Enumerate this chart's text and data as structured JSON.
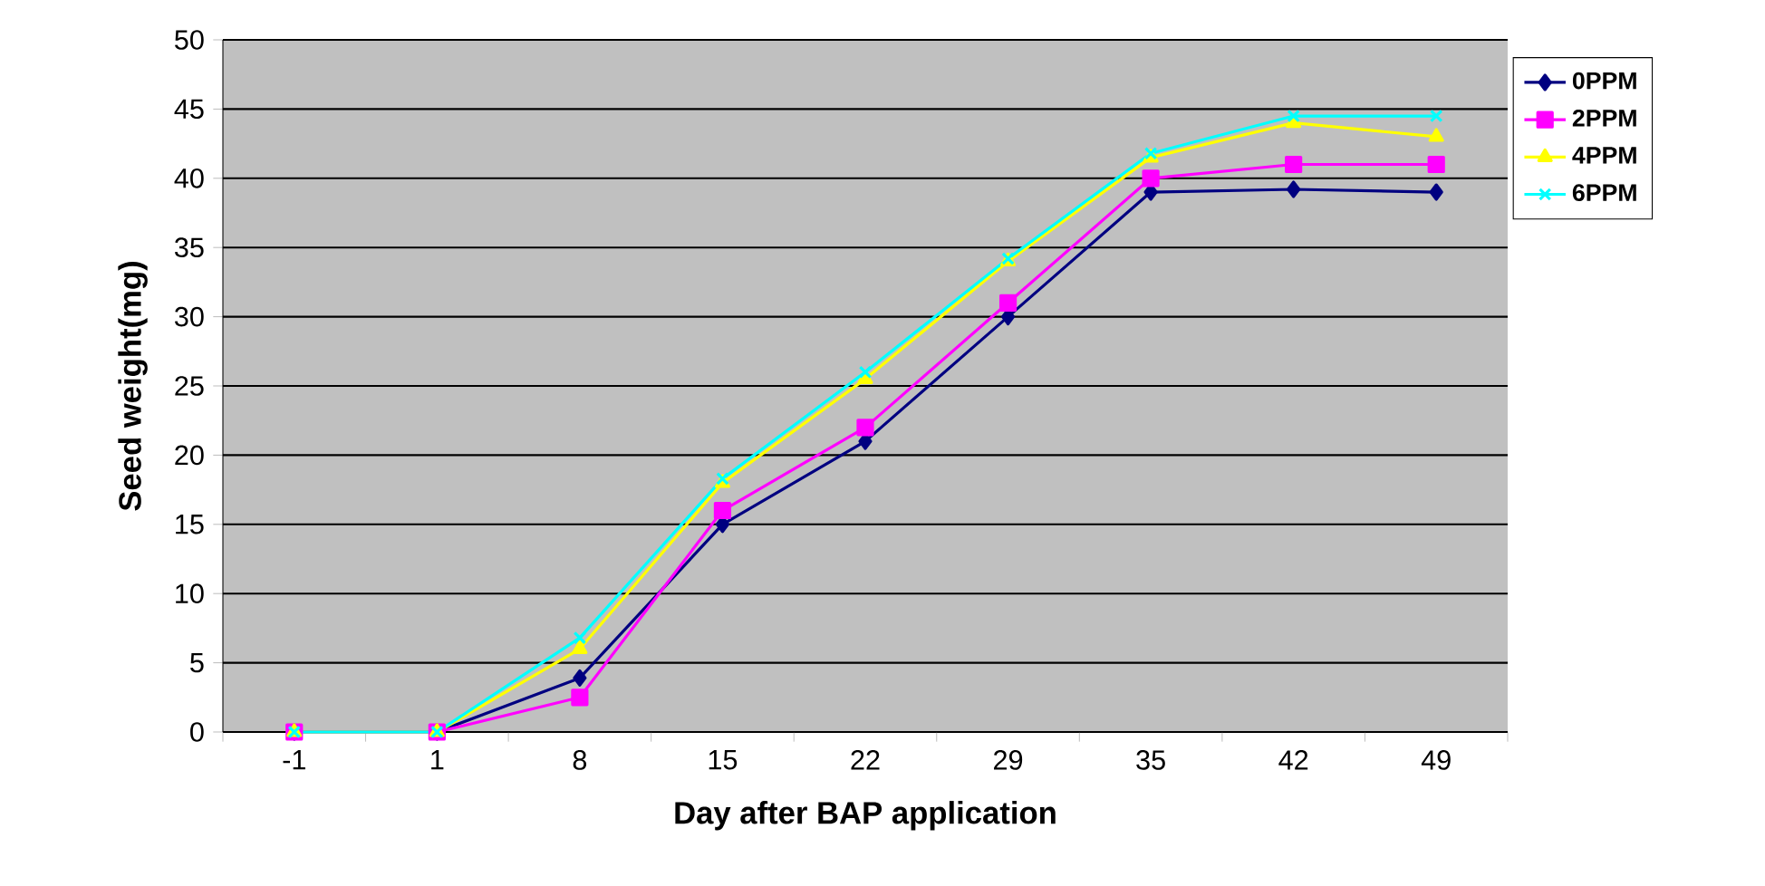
{
  "chart_data": {
    "type": "line",
    "xlabel": "Day after BAP application",
    "ylabel": "Seed weight(mg)",
    "categories": [
      "-1",
      "1",
      "8",
      "15",
      "22",
      "29",
      "35",
      "42",
      "49"
    ],
    "ylim": [
      0,
      50
    ],
    "yticks": [
      0,
      5,
      10,
      15,
      20,
      25,
      30,
      35,
      40,
      45,
      50
    ],
    "grid": "y",
    "legend": "right",
    "series": [
      {
        "name": "0PPM",
        "color": "#000080",
        "marker": "diamond",
        "values": [
          0,
          0,
          3.9,
          15,
          21,
          30,
          39,
          39.2,
          39
        ]
      },
      {
        "name": "2PPM",
        "color": "#ff00ff",
        "marker": "square",
        "values": [
          0,
          0,
          2.5,
          16,
          22,
          31,
          40,
          41,
          41
        ]
      },
      {
        "name": "4PPM",
        "color": "#ffff00",
        "marker": "triangle",
        "values": [
          0,
          0,
          6,
          18,
          25.5,
          34,
          41.5,
          44,
          43
        ]
      },
      {
        "name": "6PPM",
        "color": "#00ffff",
        "marker": "cross",
        "values": [
          0,
          0,
          6.8,
          18.3,
          26,
          34.2,
          41.8,
          44.5,
          44.5
        ]
      }
    ]
  }
}
